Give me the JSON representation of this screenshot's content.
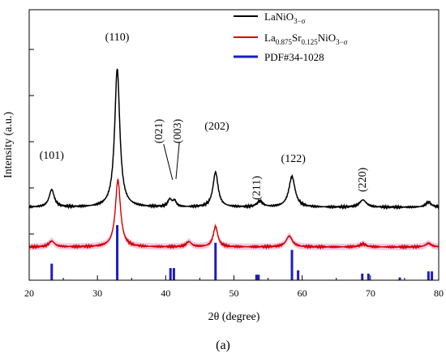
{
  "panel_label": "(a)",
  "chart_data": {
    "type": "line",
    "xlabel": "2θ (degree)",
    "ylabel": "Intensity (a.u.)",
    "xlim": [
      20,
      80
    ],
    "x_ticks": [
      20,
      30,
      40,
      50,
      60,
      70,
      80
    ],
    "y_tick_labels_shown": false,
    "grid": false,
    "legend_position": "top-right",
    "colors": {
      "series_1": "#000000",
      "series_2": "#d40000",
      "reference": "#1c1cc4",
      "band": "#f3c7e2"
    },
    "series": [
      {
        "name": "LaNiO3−σ",
        "legend": {
          "base": "LaNiO",
          "sub1": "3−σ"
        },
        "peaks": [
          {
            "x": 23.3,
            "height": 0.24,
            "width": 0.45
          },
          {
            "x": 32.9,
            "height": 1.9,
            "width": 0.45
          },
          {
            "x": 40.6,
            "height": 0.1,
            "width": 0.35
          },
          {
            "x": 41.3,
            "height": 0.08,
            "width": 0.3
          },
          {
            "x": 47.3,
            "height": 0.48,
            "width": 0.45
          },
          {
            "x": 53.8,
            "height": 0.08,
            "width": 0.5
          },
          {
            "x": 58.5,
            "height": 0.42,
            "width": 0.55
          },
          {
            "x": 68.9,
            "height": 0.1,
            "width": 0.6
          },
          {
            "x": 78.5,
            "height": 0.07,
            "width": 0.5
          }
        ],
        "baseline": 0.0
      },
      {
        "name": "La0.875Sr0.125NiO3−σ",
        "legend": {
          "base1": "La",
          "sub1": "0.875",
          "base2": "Sr",
          "sub2": "0.125",
          "base3": "NiO",
          "sub3": "3−σ"
        },
        "peaks": [
          {
            "x": 23.3,
            "height": 0.08,
            "width": 0.5
          },
          {
            "x": 33.0,
            "height": 0.92,
            "width": 0.45
          },
          {
            "x": 43.4,
            "height": 0.07,
            "width": 0.45
          },
          {
            "x": 47.3,
            "height": 0.28,
            "width": 0.4
          },
          {
            "x": 58.1,
            "height": 0.15,
            "width": 0.55
          },
          {
            "x": 68.9,
            "height": 0.04,
            "width": 0.55
          },
          {
            "x": 78.5,
            "height": 0.05,
            "width": 0.5
          }
        ],
        "baseline": 0.0
      },
      {
        "name": "PDF#34-1028",
        "type": "sticks",
        "sticks": [
          {
            "x": 23.3,
            "height": 0.3
          },
          {
            "x": 32.9,
            "height": 1.0
          },
          {
            "x": 40.7,
            "height": 0.22
          },
          {
            "x": 41.2,
            "height": 0.22
          },
          {
            "x": 47.3,
            "height": 0.68
          },
          {
            "x": 53.3,
            "height": 0.1
          },
          {
            "x": 53.6,
            "height": 0.1
          },
          {
            "x": 58.5,
            "height": 0.55
          },
          {
            "x": 59.4,
            "height": 0.18
          },
          {
            "x": 68.8,
            "height": 0.12
          },
          {
            "x": 69.7,
            "height": 0.12
          },
          {
            "x": 74.3,
            "height": 0.05
          },
          {
            "x": 78.5,
            "height": 0.16
          },
          {
            "x": 79.0,
            "height": 0.16
          }
        ]
      }
    ],
    "annotations": [
      {
        "label": "(101)",
        "x": 23.3
      },
      {
        "label": "(110)",
        "x": 32.9
      },
      {
        "label": "(021)",
        "x": 39.5
      },
      {
        "label": "(003)",
        "x": 42.2
      },
      {
        "label": "(202)",
        "x": 47.5
      },
      {
        "label": "(211)",
        "x": 53.8
      },
      {
        "label": "(122)",
        "x": 58.7
      },
      {
        "label": "(220)",
        "x": 69.3
      }
    ]
  }
}
